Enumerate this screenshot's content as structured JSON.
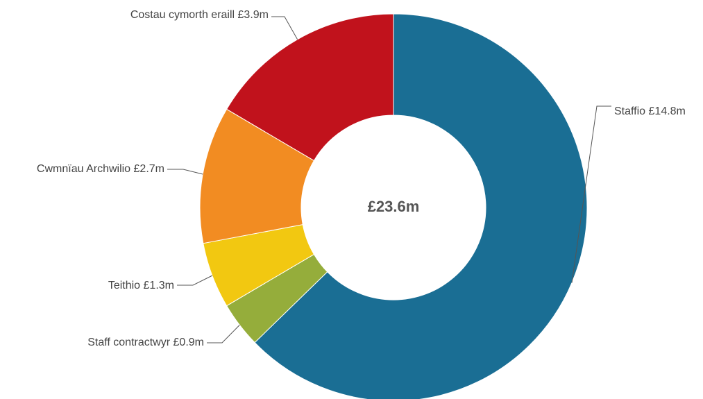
{
  "chart_data": {
    "type": "pie",
    "donut": true,
    "center_label": "£23.6m",
    "slices": [
      {
        "label": "Staffio £14.8m",
        "value": 14.8,
        "color": "#1a6e94"
      },
      {
        "label": "Staff contractwyr £0.9m",
        "value": 0.9,
        "color": "#95ad3b"
      },
      {
        "label": "Teithio £1.3m",
        "value": 1.3,
        "color": "#f2c811"
      },
      {
        "label": "Cwmnïau Archwilio £2.7m",
        "value": 2.7,
        "color": "#f28c22"
      },
      {
        "label": "Costau cymorth eraill £3.9m",
        "value": 3.9,
        "color": "#c1121c"
      }
    ]
  }
}
